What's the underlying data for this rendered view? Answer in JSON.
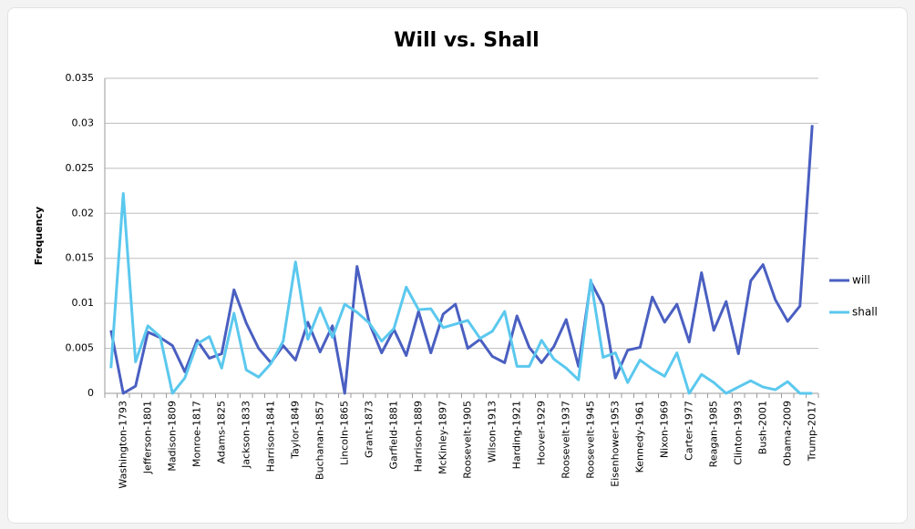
{
  "chart_data": {
    "type": "line",
    "title": "Will vs. Shall",
    "y_label": "Frequency",
    "categories": [
      null,
      "Washington-1793",
      null,
      "Jefferson-1801",
      null,
      "Madison-1809",
      null,
      "Monroe-1817",
      null,
      "Adams-1825",
      null,
      "Jackson-1833",
      null,
      "Harrison-1841",
      null,
      "Taylor-1849",
      null,
      "Buchanan-1857",
      null,
      "Lincoln-1865",
      null,
      "Grant-1873",
      null,
      "Garfield-1881",
      null,
      "Harrison-1889",
      null,
      "McKinley-1897",
      null,
      "Roosevelt-1905",
      null,
      "Wilson-1913",
      null,
      "Harding-1921",
      null,
      "Hoover-1929",
      null,
      "Roosevelt-1937",
      null,
      "Roosevelt-1945",
      null,
      "Eisenhower-1953",
      null,
      "Kennedy-1961",
      null,
      "Nixon-1969",
      null,
      "Carter-1977",
      null,
      "Reagan-1985",
      null,
      "Clinton-1993",
      null,
      "Bush-2001",
      null,
      "Obama-2009",
      null,
      "Trump-2017"
    ],
    "series": [
      {
        "name": "will",
        "color": "#4a5fc1",
        "values": [
          0.007,
          0,
          0.0008,
          0.0068,
          0.0062,
          0.0053,
          0.0024,
          0.0059,
          0.0039,
          0.0044,
          0.0115,
          0.0078,
          0.005,
          0.0034,
          0.0053,
          0.0037,
          0.0079,
          0.0046,
          0.0075,
          0,
          0.0141,
          0.0078,
          0.0045,
          0.0071,
          0.0042,
          0.0091,
          0.0045,
          0.0088,
          0.0099,
          0.005,
          0.006,
          0.0041,
          0.0034,
          0.0086,
          0.0051,
          0.0034,
          0.0052,
          0.0082,
          0.003,
          0.0124,
          0.0098,
          0.0017,
          0.0048,
          0.0051,
          0.0107,
          0.0079,
          0.0099,
          0.0057,
          0.0134,
          0.007,
          0.0102,
          0.0044,
          0.0125,
          0.0143,
          0.0104,
          0.008,
          0.0097,
          0.0298
        ]
      },
      {
        "name": "shall",
        "color": "#5bc8ee",
        "values": [
          0.0028,
          0.0222,
          0.0035,
          0.0075,
          0.0063,
          0,
          0.0017,
          0.0055,
          0.0063,
          0.0028,
          0.0089,
          0.0026,
          0.0018,
          0.0033,
          0.0058,
          0.0146,
          0.006,
          0.0095,
          0.0062,
          0.0099,
          0.009,
          0.0078,
          0.0058,
          0.0072,
          0.0118,
          0.0093,
          0.0094,
          0.0073,
          0.0077,
          0.0081,
          0.0061,
          0.0069,
          0.0091,
          0.003,
          0.003,
          0.0059,
          0.0038,
          0.0028,
          0.0015,
          0.0126,
          0.004,
          0.0045,
          0.0012,
          0.0037,
          0.0027,
          0.0019,
          0.0045,
          0,
          0.0021,
          0.0012,
          0,
          0.0007,
          0.0014,
          0.0007,
          0.0004,
          0.0013,
          0,
          0
        ]
      }
    ],
    "ylim": [
      0,
      0.035
    ],
    "yticks": [
      0,
      0.005,
      0.01,
      0.015,
      0.02,
      0.025,
      0.03,
      0.035
    ],
    "grid": true,
    "legend": "right"
  }
}
